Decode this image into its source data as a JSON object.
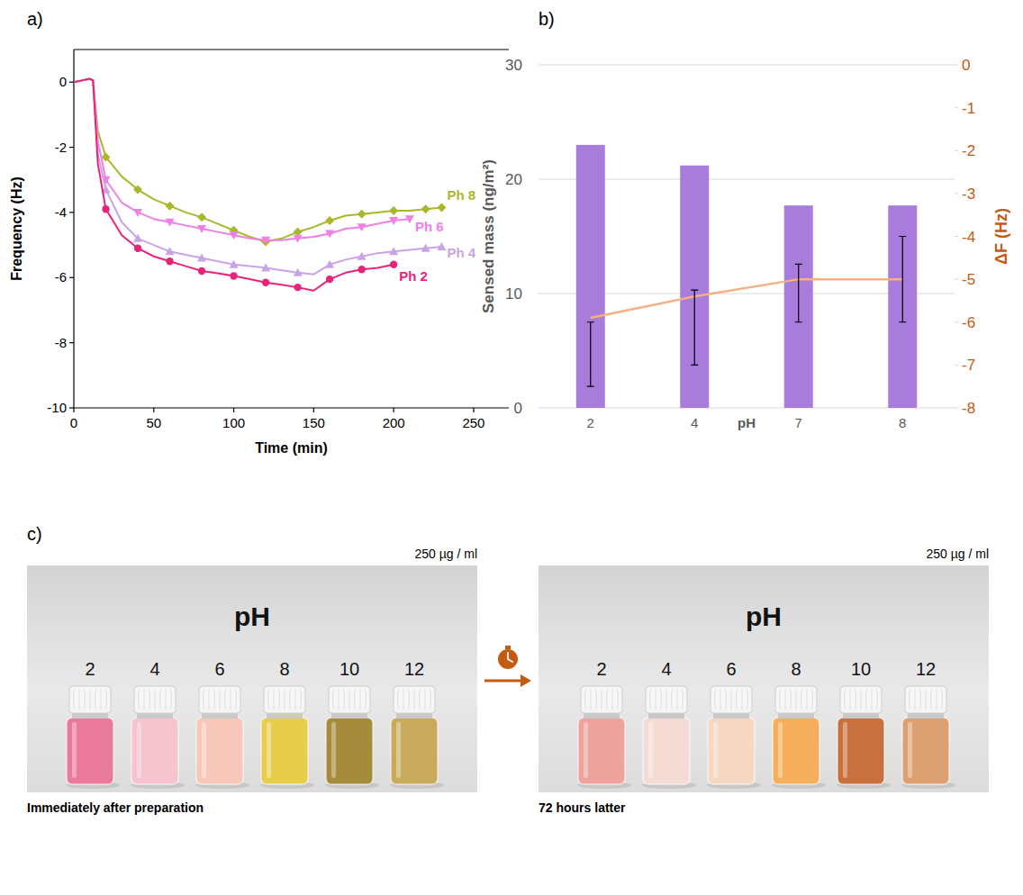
{
  "chart_data": [
    {
      "type": "line",
      "label": "a)",
      "x_label": "Time (min)",
      "y_label": "Frequency (Hz)",
      "x": [
        0,
        5,
        10,
        12,
        15,
        20,
        30,
        40,
        50,
        60,
        70,
        80,
        90,
        100,
        110,
        120,
        130,
        140,
        150,
        160,
        170,
        180,
        190,
        200,
        210,
        220,
        230
      ],
      "xlim": [
        0,
        272
      ],
      "xticks": [
        0,
        50,
        100,
        150,
        200,
        250
      ],
      "ylim": [
        -10,
        1
      ],
      "yticks": [
        -10,
        -8,
        -6,
        -4,
        -2,
        0
      ],
      "series": [
        {
          "name": "Ph 8",
          "color": "#a8b82a",
          "marker": "diamond",
          "values": [
            0,
            0.05,
            0.1,
            0.05,
            -1.5,
            -2.3,
            -2.9,
            -3.3,
            -3.6,
            -3.8,
            -4.0,
            -4.15,
            -4.35,
            -4.55,
            -4.75,
            -4.9,
            -4.8,
            -4.6,
            -4.45,
            -4.25,
            -4.1,
            -4.05,
            -4.0,
            -3.95,
            -3.95,
            -3.9,
            -3.85
          ]
        },
        {
          "name": "Ph 6",
          "color": "#f27fe6",
          "marker": "triangle-down",
          "values": [
            0,
            0.05,
            0.1,
            0.05,
            -1.8,
            -3.0,
            -3.7,
            -4.0,
            -4.2,
            -4.3,
            -4.4,
            -4.5,
            -4.6,
            -4.7,
            -4.8,
            -4.85,
            -4.85,
            -4.8,
            -4.75,
            -4.65,
            -4.5,
            -4.45,
            -4.35,
            -4.25,
            -4.2,
            null,
            null
          ]
        },
        {
          "name": "Ph 4",
          "color": "#c9a3e8",
          "marker": "triangle-up",
          "values": [
            0,
            0.05,
            0.1,
            0.05,
            -2.2,
            -3.3,
            -4.3,
            -4.8,
            -5.0,
            -5.2,
            -5.3,
            -5.4,
            -5.5,
            -5.6,
            -5.65,
            -5.7,
            -5.78,
            -5.85,
            -5.9,
            -5.6,
            -5.45,
            -5.35,
            -5.25,
            -5.2,
            -5.15,
            -5.1,
            -5.05
          ]
        },
        {
          "name": "Ph 2",
          "color": "#e8247a",
          "marker": "circle",
          "values": [
            0,
            0.05,
            0.1,
            0.05,
            -2.5,
            -3.9,
            -4.7,
            -5.1,
            -5.35,
            -5.5,
            -5.65,
            -5.8,
            -5.87,
            -5.95,
            -6.05,
            -6.15,
            -6.22,
            -6.3,
            -6.4,
            -6.05,
            -5.85,
            -5.75,
            -5.7,
            -5.6,
            null,
            null,
            null
          ]
        }
      ]
    },
    {
      "type": "bar",
      "label": "b)",
      "x_label": "pH",
      "y_label": "Sensed mass (ng/m²)",
      "y2_label": "ΔF (Hz)",
      "categories": [
        "2",
        "4",
        "7",
        "8"
      ],
      "ylim": [
        0,
        30
      ],
      "yticks": [
        0,
        10,
        20,
        30
      ],
      "y2lim": [
        -8,
        0
      ],
      "y2ticks": [
        0,
        -1,
        -2,
        -3,
        -4,
        -5,
        -6,
        -7,
        -8
      ],
      "grid": true,
      "series": [
        {
          "type": "bar",
          "color": "#a87cdb",
          "values": [
            23,
            21.2,
            17.7,
            17.7
          ]
        },
        {
          "type": "line",
          "axis": "y2",
          "color": "#f4b183",
          "values": [
            -5.9,
            -5.4,
            -5.0,
            -5.0
          ],
          "error_low": [
            -7.5,
            -7.0,
            -6.0,
            -6.0
          ],
          "error_high": [
            -6.0,
            -5.25,
            -4.65,
            -4.0
          ]
        }
      ]
    }
  ],
  "panel_c": {
    "label": "c)",
    "panels": [
      {
        "concentration": "250 µg / ml",
        "heading": "pH",
        "ph_labels": [
          2,
          4,
          6,
          8,
          10,
          12
        ],
        "colors": [
          "#e97a9c",
          "#f5c4cf",
          "#f7c7b9",
          "#e6ce4c",
          "#a78b3c",
          "#c8ab5c"
        ],
        "caption": "Immediately after preparation"
      },
      {
        "concentration": "250 µg / ml",
        "heading": "pH",
        "ph_labels": [
          2,
          4,
          6,
          8,
          10,
          12
        ],
        "colors": [
          "#eea39f",
          "#f4dcd4",
          "#f6d7c4",
          "#f4ae5c",
          "#c8713f",
          "#dca173"
        ],
        "caption": "72 hours latter"
      }
    ]
  }
}
